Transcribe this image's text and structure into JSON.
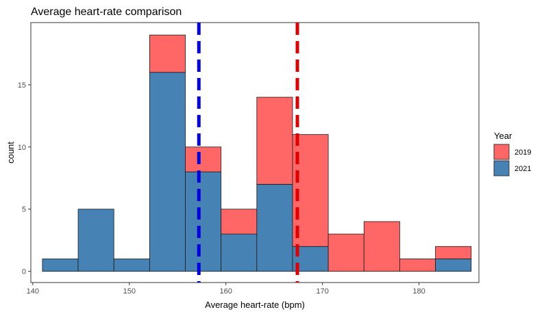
{
  "chart_data": {
    "type": "bar",
    "subtype": "stacked-histogram",
    "title": "Average heart-rate comparison",
    "xlabel": "Average heart-rate (bpm)",
    "ylabel": "count",
    "xlim": [
      139.8,
      186.2
    ],
    "ylim": [
      -0.9,
      20
    ],
    "x_ticks": [
      140,
      150,
      160,
      170,
      180
    ],
    "y_ticks": [
      0,
      5,
      10,
      15
    ],
    "bins": [
      [
        141.0,
        144.7
      ],
      [
        144.7,
        148.4
      ],
      [
        148.4,
        152.1
      ],
      [
        152.1,
        155.8
      ],
      [
        155.8,
        159.5
      ],
      [
        159.5,
        163.2
      ],
      [
        163.2,
        166.9
      ],
      [
        166.9,
        170.6
      ],
      [
        170.6,
        174.3
      ],
      [
        174.3,
        178.0
      ],
      [
        178.0,
        181.7
      ],
      [
        181.7,
        185.4
      ]
    ],
    "series": [
      {
        "name": "2021",
        "color": "#4682b4",
        "values": [
          1,
          5,
          1,
          16,
          8,
          3,
          7,
          2,
          0,
          0,
          0,
          1
        ]
      },
      {
        "name": "2019",
        "color": "#ff6666",
        "values": [
          0,
          0,
          0,
          3,
          2,
          2,
          7,
          9,
          3,
          4,
          1,
          1
        ]
      }
    ],
    "stack_order_bottom_to_top": [
      "2021",
      "2019"
    ],
    "reference_lines": [
      {
        "x": 157.2,
        "color": "#0000e0",
        "style": "dashed"
      },
      {
        "x": 167.4,
        "color": "#e00000",
        "style": "dashed"
      }
    ],
    "legend": {
      "title": "Year",
      "placement": "right",
      "entries": [
        {
          "label": "2019",
          "color": "#ff6666"
        },
        {
          "label": "2021",
          "color": "#4682b4"
        }
      ]
    },
    "grid": false
  }
}
